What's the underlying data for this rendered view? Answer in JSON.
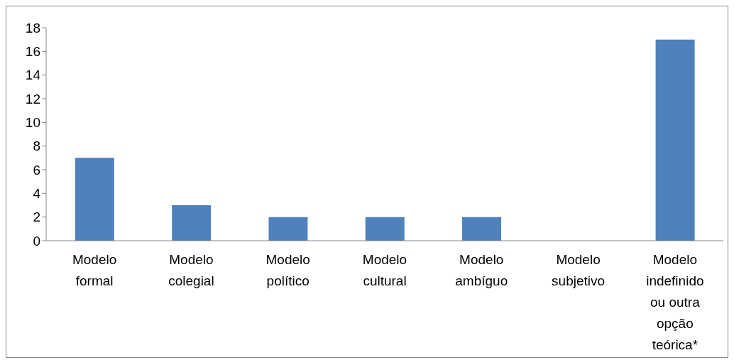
{
  "chart_data": {
    "type": "bar",
    "categories": [
      "Modelo formal",
      "Modelo colegial",
      "Modelo político",
      "Modelo cultural",
      "Modelo ambíguo",
      "Modelo subjetivo",
      "Modelo indefinido ou outra opção teórica*"
    ],
    "values": [
      7,
      3,
      2,
      2,
      2,
      0,
      17
    ],
    "color": "#4f81bd",
    "ylim": [
      0,
      18
    ],
    "yticks": [
      0,
      2,
      4,
      6,
      8,
      10,
      12,
      14,
      16,
      18
    ],
    "grid": false,
    "legend": false
  }
}
